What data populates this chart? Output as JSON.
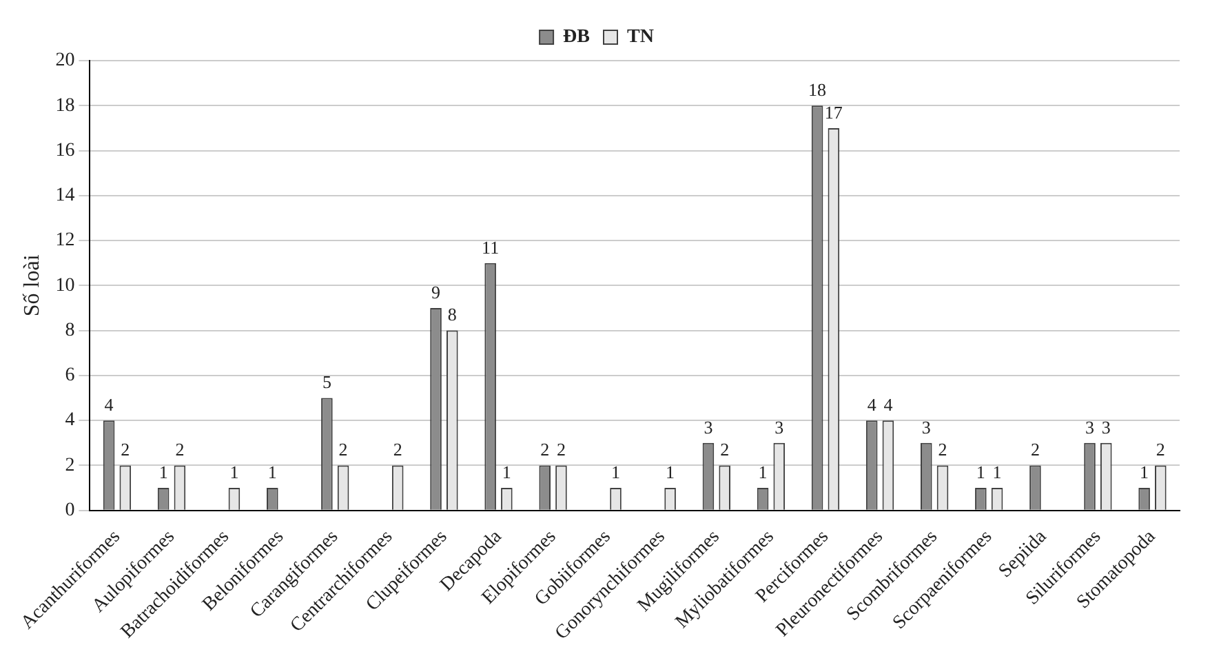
{
  "chart_data": {
    "type": "bar",
    "ylabel": "Số loài",
    "categories": [
      "Acanthuriformes",
      "Aulopiformes",
      "Batrachoidiformes",
      "Beloniformes",
      "Carangiformes",
      "Centrarchiformes",
      "Clupeiformes",
      "Decapoda",
      "Elopiformes",
      "Gobiiformes",
      "Gonorynchiformes",
      "Mugiliformes",
      "Myliobatiformes",
      "Perciformes",
      "Pleuronectiformes",
      "Scombriformes",
      "Scorpaeniformes",
      "Sepiida",
      "Siluriformes",
      "Stomatopoda"
    ],
    "series": [
      {
        "name": "ĐB",
        "color": "#8c8c8c",
        "values": [
          4,
          1,
          null,
          1,
          5,
          null,
          9,
          11,
          2,
          null,
          null,
          3,
          1,
          18,
          4,
          3,
          1,
          2,
          3,
          1
        ]
      },
      {
        "name": "TN",
        "color": "#e6e6e6",
        "values": [
          2,
          2,
          1,
          null,
          2,
          2,
          8,
          1,
          2,
          1,
          1,
          2,
          3,
          17,
          4,
          2,
          1,
          null,
          3,
          2
        ]
      }
    ],
    "ylim": [
      0,
      20
    ],
    "yticks": [
      0,
      2,
      4,
      6,
      8,
      10,
      12,
      14,
      16,
      18,
      20
    ],
    "grid": "y",
    "legend": "top",
    "data_labels": true
  }
}
